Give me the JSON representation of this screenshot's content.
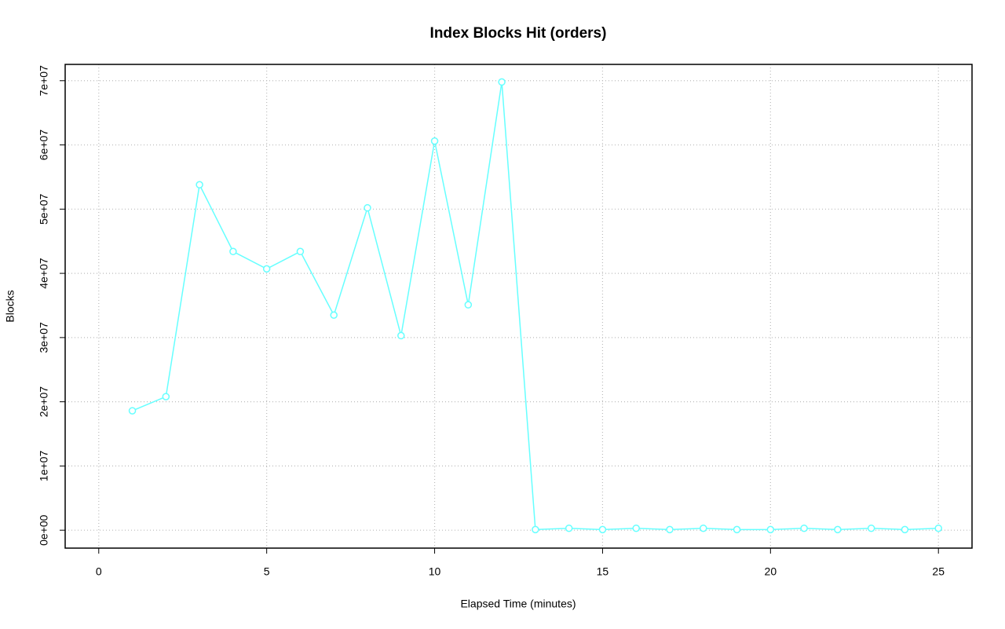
{
  "chart_data": {
    "type": "line",
    "title": "Index Blocks Hit (orders)",
    "x_label": "Elapsed Time (minutes)",
    "y_label": "Blocks",
    "x": [
      1,
      2,
      3,
      4,
      5,
      6,
      7,
      8,
      9,
      10,
      11,
      12,
      13,
      14,
      15,
      16,
      17,
      18,
      19,
      20,
      21,
      22,
      23,
      24,
      25
    ],
    "values": [
      18600000,
      20800000,
      53800000,
      43400000,
      40700000,
      43400000,
      33500000,
      50200000,
      30300000,
      60600000,
      35100000,
      69800000,
      100000,
      300000,
      100000,
      300000,
      100000,
      300000,
      100000,
      100000,
      300000,
      100000,
      300000,
      100000,
      300000
    ],
    "color": "#66ffff",
    "xlim": [
      -1,
      26
    ],
    "xticks": [
      0,
      5,
      10,
      15,
      20,
      25
    ],
    "ylim": [
      -2790000,
      72540000
    ],
    "yticks": [
      {
        "value": 0,
        "label": "0e+00"
      },
      {
        "value": 10000000,
        "label": "1e+07"
      },
      {
        "value": 20000000,
        "label": "2e+07"
      },
      {
        "value": 30000000,
        "label": "3e+07"
      },
      {
        "value": 40000000,
        "label": "4e+07"
      },
      {
        "value": 50000000,
        "label": "5e+07"
      },
      {
        "value": 60000000,
        "label": "6e+07"
      },
      {
        "value": 70000000,
        "label": "7e+07"
      }
    ],
    "grid": true
  }
}
